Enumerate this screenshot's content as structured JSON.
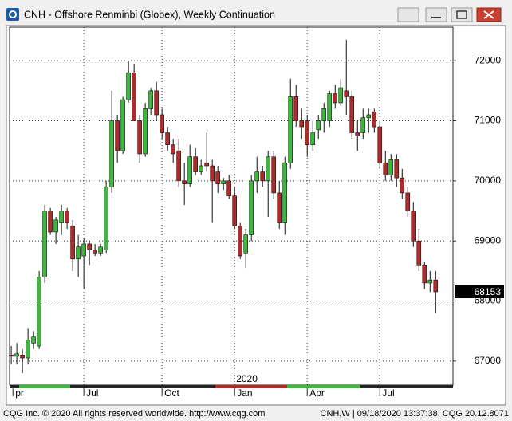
{
  "window_title": "CNH - Offshore Renminbi (Globex), Weekly Continuation",
  "footer_left": "CQG Inc. © 2020 All rights reserved worldwide. http://www.cqg.com",
  "footer_right": "CNH,W | 09/18/2020 13:37:38, CQG 20.12.8071",
  "chart_data": {
    "type": "candlestick",
    "x": [
      0,
      1,
      2,
      3,
      4,
      5,
      6,
      7,
      8,
      9,
      10,
      11,
      12,
      13,
      14,
      15,
      16,
      17,
      18,
      19,
      20,
      21,
      22,
      23,
      24,
      25,
      26,
      27,
      28,
      29,
      30,
      31,
      32,
      33,
      34,
      35,
      36,
      37,
      38,
      39,
      40,
      41,
      42,
      43,
      44,
      45,
      46,
      47,
      48,
      49,
      50,
      51,
      52,
      53,
      54,
      55,
      56,
      57,
      58,
      59,
      60,
      61,
      62,
      63,
      64,
      65,
      66,
      67,
      68,
      69,
      70,
      71,
      72,
      73,
      74,
      75,
      76
    ],
    "open": [
      67100,
      67080,
      67100,
      67050,
      67300,
      67250,
      68400,
      69500,
      69150,
      69300,
      69500,
      69250,
      68700,
      68750,
      68950,
      68850,
      68800,
      68850,
      69900,
      71000,
      70500,
      71350,
      71800,
      71000,
      70450,
      71200,
      71500,
      71100,
      70800,
      70600,
      70500,
      70000,
      69950,
      70400,
      70150,
      70300,
      70250,
      70150,
      69950,
      70000,
      69750,
      69250,
      68800,
      69100,
      70000,
      70150,
      70000,
      70400,
      69800,
      69300,
      70300,
      71400,
      71000,
      71000,
      70600,
      70850,
      71000,
      71000,
      71450,
      71300,
      71500,
      71400,
      70800,
      70800,
      71050,
      71150,
      70900,
      70300,
      70100,
      70350,
      70050,
      69800,
      69500,
      69000,
      68600,
      68300,
      68350
    ],
    "high": [
      67250,
      67300,
      67200,
      67550,
      67500,
      68500,
      69600,
      69550,
      69400,
      69600,
      69550,
      69350,
      69100,
      69050,
      69000,
      68950,
      68950,
      70000,
      71500,
      71100,
      71400,
      72000,
      71950,
      71100,
      71300,
      71550,
      71650,
      71200,
      70900,
      70700,
      70700,
      70300,
      70600,
      70550,
      70350,
      70800,
      70350,
      70250,
      70050,
      70100,
      69900,
      69300,
      69200,
      70100,
      70400,
      70250,
      70500,
      70500,
      70000,
      70400,
      71700,
      71600,
      71200,
      71100,
      71000,
      71100,
      71300,
      71500,
      71600,
      71700,
      72350,
      71500,
      71000,
      71200,
      71200,
      71200,
      71000,
      70500,
      70450,
      70450,
      70200,
      69900,
      69650,
      69200,
      68650,
      68500,
      68500
    ],
    "low": [
      66950,
      66950,
      66800,
      66950,
      67200,
      67200,
      68300,
      69100,
      68950,
      69100,
      69200,
      68500,
      68400,
      68200,
      68600,
      68750,
      68750,
      68800,
      69800,
      70300,
      70450,
      71300,
      71000,
      70300,
      70400,
      71100,
      71000,
      70700,
      70500,
      70300,
      69900,
      69600,
      69900,
      70100,
      70100,
      70150,
      69300,
      69800,
      69850,
      69700,
      69200,
      68700,
      68550,
      69000,
      69800,
      69900,
      69400,
      69700,
      69200,
      69100,
      70200,
      70900,
      70700,
      70400,
      70500,
      70700,
      70800,
      70900,
      71200,
      71250,
      71100,
      70700,
      70500,
      70700,
      70800,
      70800,
      70200,
      70000,
      70000,
      69900,
      69700,
      69400,
      68900,
      68500,
      68200,
      68150,
      67800
    ],
    "close": [
      67080,
      67120,
      67050,
      67350,
      67400,
      68400,
      69500,
      69150,
      69350,
      69500,
      69300,
      68700,
      68900,
      68950,
      68850,
      68800,
      68900,
      69900,
      71000,
      70500,
      71350,
      71800,
      71000,
      70450,
      71200,
      71500,
      71100,
      70800,
      70600,
      70450,
      70000,
      69950,
      70400,
      70150,
      70250,
      70250,
      70000,
      69950,
      70000,
      69750,
      69250,
      68750,
      69100,
      70000,
      70150,
      70000,
      70400,
      69800,
      69300,
      70300,
      71400,
      71000,
      70900,
      70600,
      70800,
      71000,
      71200,
      71450,
      71300,
      71550,
      71400,
      70800,
      70750,
      71050,
      71100,
      70900,
      70300,
      70100,
      70350,
      70050,
      69800,
      69500,
      69000,
      68600,
      68300,
      68350,
      68153
    ],
    "up_color": "#3cb83c",
    "down_color": "#b02a2a",
    "xlim": [
      -0.3,
      79.1
    ],
    "xticks": [
      {
        "value": 0.3,
        "label": "pr"
      },
      {
        "value": 13,
        "label": "Jul"
      },
      {
        "value": 27,
        "label": "Oct"
      },
      {
        "value": 40,
        "label": "Jan"
      },
      {
        "value": 53,
        "label": "Apr"
      },
      {
        "value": 66,
        "label": "Jul"
      }
    ],
    "year_label": "2020",
    "ylim": [
      66600,
      72560
    ],
    "yticks": [
      67000,
      68000,
      69000,
      70000,
      71000,
      72000
    ],
    "grid": true
  }
}
